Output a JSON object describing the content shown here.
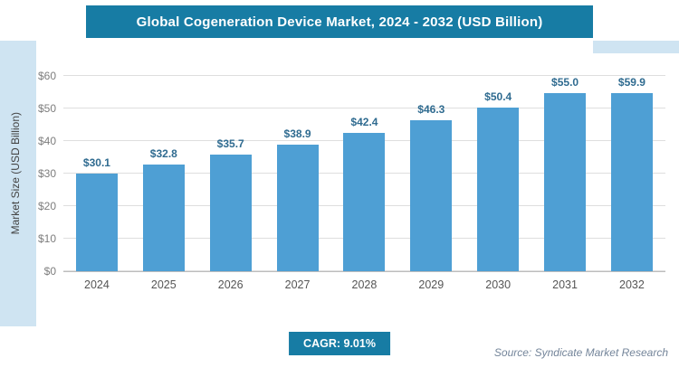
{
  "header": {
    "title": "Global Cogeneration Device Market, 2024 - 2032 (USD Billion)"
  },
  "chart_data": {
    "type": "bar",
    "title": "Global Cogeneration Device Market, 2024 - 2032 (USD Billion)",
    "categories": [
      "2024",
      "2025",
      "2026",
      "2027",
      "2028",
      "2029",
      "2030",
      "2031",
      "2032"
    ],
    "values": [
      30.1,
      32.8,
      35.7,
      38.9,
      42.4,
      46.3,
      50.4,
      55.0,
      59.9
    ],
    "value_labels": [
      "$30.1",
      "$32.8",
      "$35.7",
      "$38.9",
      "$42.4",
      "$46.3",
      "$50.4",
      "$55.0",
      "$59.9"
    ],
    "xlabel": "",
    "ylabel": "Market Size (USD Billion)",
    "ylim": [
      0,
      60
    ],
    "ytick_step": 10,
    "ytick_labels": [
      "$0",
      "$10",
      "$20",
      "$30",
      "$40",
      "$50",
      "$60"
    ],
    "grid": true,
    "legend": "none",
    "bar_color": "#4e9fd4"
  },
  "footer": {
    "cagr_label": "CAGR: 9.01%",
    "source": "Source: Syndicate Market Research"
  },
  "colors": {
    "banner_teal": "#177ca4",
    "accent_light_blue": "#cfe4f2",
    "bar_blue": "#4e9fd4",
    "value_label": "#2f6b90"
  }
}
